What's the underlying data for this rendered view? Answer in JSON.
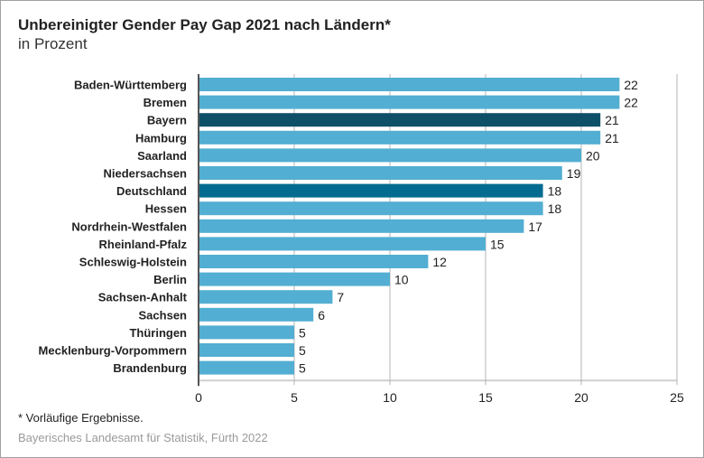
{
  "chart_data": {
    "type": "bar",
    "orientation": "horizontal",
    "title": "Unbereinigter Gender Pay Gap 2021 nach Ländern*",
    "subtitle": "in Prozent",
    "xlabel": "",
    "ylabel": "",
    "xlim": [
      0,
      25
    ],
    "ticks": [
      0,
      5,
      10,
      15,
      20,
      25
    ],
    "tick_labels": [
      "0",
      "5",
      "10",
      "15",
      "20",
      "25"
    ],
    "grid": true,
    "categories": [
      "Baden-Württemberg",
      "Bremen",
      "Bayern",
      "Hamburg",
      "Saarland",
      "Niedersachsen",
      "Deutschland",
      "Hessen",
      "Nordrhein-Westfalen",
      "Rheinland-Pfalz",
      "Schleswig-Holstein",
      "Berlin",
      "Sachsen-Anhalt",
      "Sachsen",
      "Thüringen",
      "Mecklenburg-Vorpommern",
      "Brandenburg"
    ],
    "values": [
      22,
      22,
      21,
      21,
      20,
      19,
      18,
      18,
      17,
      15,
      12,
      10,
      7,
      6,
      5,
      5,
      5
    ],
    "highlight": {
      "Bayern": "#0e5068",
      "Deutschland": "#036b8f"
    },
    "colors": {
      "default": "#52aed2",
      "highlight_bayern": "#0e5068",
      "highlight_deutschland": "#036b8f"
    },
    "footnote": "*  Vorläufige Ergebnisse.",
    "source": "Bayerisches Landesamt für Statistik, Fürth 2022"
  }
}
